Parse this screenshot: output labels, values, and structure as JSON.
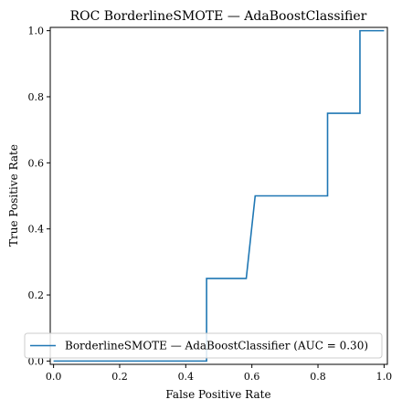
{
  "chart_data": {
    "type": "line",
    "title": "ROC BorderlineSMOTE — AdaBoostClassifier",
    "xlabel": "False Positive Rate",
    "ylabel": "True Positive Rate",
    "xlim": [
      -0.01,
      1.01
    ],
    "ylim": [
      -0.01,
      1.01
    ],
    "xticks": [
      0.0,
      0.2,
      0.4,
      0.6,
      0.8,
      1.0
    ],
    "yticks": [
      0.0,
      0.2,
      0.4,
      0.6,
      0.8,
      1.0
    ],
    "xtick_labels": [
      "0.0",
      "0.2",
      "0.4",
      "0.6",
      "0.8",
      "1.0"
    ],
    "ytick_labels": [
      "0.0",
      "0.2",
      "0.4",
      "0.6",
      "0.8",
      "1.0"
    ],
    "grid": false,
    "legend_position": "lower-right",
    "series": [
      {
        "name": "BorderlineSMOTE — AdaBoostClassifier (AUC = 0.30)",
        "color": "#1f77b4",
        "x": [
          0.0,
          0.0,
          0.463,
          0.463,
          0.583,
          0.61,
          0.61,
          0.829,
          0.829,
          0.927,
          0.927,
          1.0
        ],
        "y": [
          0.0,
          0.0,
          0.0,
          0.25,
          0.25,
          0.5,
          0.5,
          0.5,
          0.75,
          0.75,
          1.0,
          1.0
        ]
      }
    ]
  }
}
